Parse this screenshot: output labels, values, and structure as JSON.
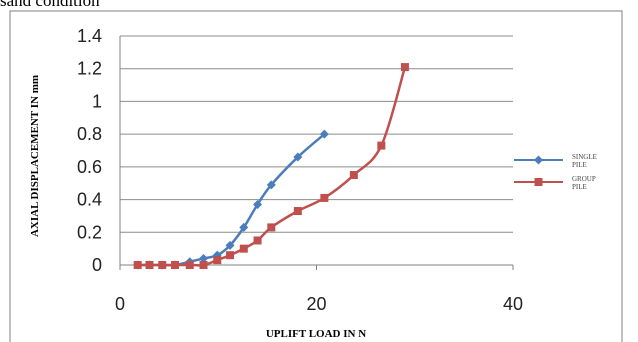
{
  "caption": "sand condition",
  "chart_data": {
    "type": "line",
    "title": "",
    "xlabel": "UPLIFT LOAD IN N",
    "ylabel": "AXIAL DISPLACEMENT IN mm",
    "xlim": [
      0,
      40
    ],
    "ylim": [
      0,
      1.4
    ],
    "x_ticks": [
      "0",
      "20",
      "40"
    ],
    "y_ticks": [
      "0",
      "0.2",
      "0.4",
      "0.6",
      "0.8",
      "1",
      "1.2",
      "1.4"
    ],
    "grid": "horizontal",
    "legend_position": "right",
    "series": [
      {
        "name": "SINGLE PILE",
        "legend_lines": [
          "SINGLE",
          "PILE"
        ],
        "color": "#4a7ebb",
        "marker": "diamond",
        "x": [
          1.8,
          3.0,
          4.3,
          5.6,
          7.1,
          8.5,
          9.9,
          11.2,
          12.6,
          14.0,
          15.4,
          18.1,
          20.8
        ],
        "y": [
          0,
          0,
          0,
          0,
          0.02,
          0.04,
          0.06,
          0.12,
          0.23,
          0.37,
          0.49,
          0.66,
          0.8
        ]
      },
      {
        "name": "GROUP PILE",
        "legend_lines": [
          "GROUP",
          "PILE"
        ],
        "color": "#c0504d",
        "marker": "square",
        "x": [
          1.8,
          3.0,
          4.3,
          5.6,
          7.1,
          8.5,
          9.9,
          11.2,
          12.6,
          14.0,
          15.4,
          18.1,
          20.8,
          23.8,
          26.6,
          29.0
        ],
        "y": [
          0,
          0,
          0,
          0,
          0,
          0,
          0.03,
          0.06,
          0.1,
          0.15,
          0.23,
          0.33,
          0.41,
          0.55,
          0.73,
          1.21
        ]
      }
    ]
  }
}
